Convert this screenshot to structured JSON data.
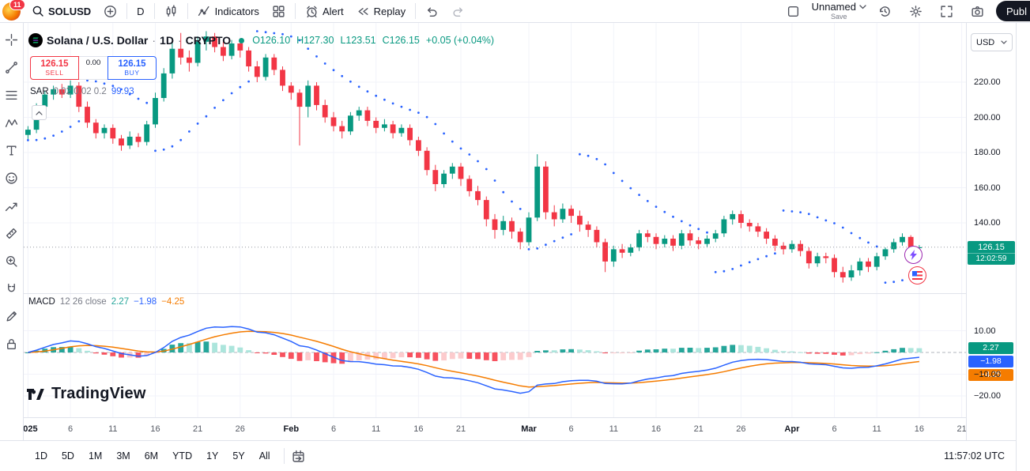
{
  "toolbar": {
    "notification_count": "11",
    "symbol": "SOLUSD",
    "interval": "D",
    "indicators_label": "Indicators",
    "alert_label": "Alert",
    "replay_label": "Replay",
    "layout_name": "Unnamed",
    "save_label": "Save",
    "publish_label": "Publ"
  },
  "header": {
    "title": "Solana / U.S. Dollar",
    "sep": "·",
    "interval": "1D",
    "market": "CRYPTO",
    "ohlc_items": [
      "O126.10",
      "H127.30",
      "L123.51",
      "C126.15",
      "+0.05 (+0.04%)"
    ],
    "sell_price": "126.15",
    "sell_label": "SELL",
    "spread": "0.00",
    "buy_price": "126.15",
    "buy_label": "BUY",
    "sar_title": "SAR",
    "sar_params": "0.02 0.02 0.2",
    "sar_value": "99.93"
  },
  "price_axis": {
    "currency": "USD",
    "labels": [
      "220.00",
      "200.00",
      "180.00",
      "160.00",
      "140.00"
    ],
    "last_price": "126.15",
    "countdown": "12:02:59"
  },
  "macd_panel": {
    "title": "MACD",
    "params": "12 26 close",
    "hist": "2.27",
    "macd": "−1.98",
    "signal": "−4.25",
    "axis_labels": [
      "10.00",
      "−10.00",
      "−20.00"
    ]
  },
  "bottom_bar": {
    "ranges": [
      "1D",
      "5D",
      "1M",
      "3M",
      "6M",
      "YTD",
      "1Y",
      "5Y",
      "All"
    ],
    "clock": "11:57:02 UTC"
  },
  "watermark": "TradingView",
  "left_toolbar": {
    "tools": [
      "crosshair",
      "trend-line",
      "fib-retracement",
      "pattern",
      "text",
      "emoji",
      "forecast",
      "ruler",
      "zoom-in",
      "magnet",
      "pencil",
      "lock"
    ]
  },
  "chart_data": {
    "type": "candlestick",
    "symbol": "SOLUSD",
    "timeframe": "1D",
    "last_price": 126.15,
    "price_gridlines": [
      220,
      200,
      180,
      160,
      140
    ],
    "macd_gridlines": [
      10,
      -10,
      -20
    ],
    "colors": {
      "up": "#089981",
      "down": "#F23645",
      "sar": "#2962FF",
      "macd_line": "#2962FF",
      "signal_line": "#F57C00",
      "hist_up_strong": "#26A69A",
      "hist_up_weak": "#ACE5DC",
      "hist_down_strong": "#F7525F",
      "hist_down_weak": "#FCCBCD"
    },
    "x_ticks": [
      {
        "i": 0,
        "label": "2025",
        "m": 1
      },
      {
        "i": 5,
        "label": "6"
      },
      {
        "i": 10,
        "label": "11"
      },
      {
        "i": 15,
        "label": "16"
      },
      {
        "i": 20,
        "label": "21"
      },
      {
        "i": 25,
        "label": "26"
      },
      {
        "i": 31,
        "label": "Feb",
        "m": 1
      },
      {
        "i": 36,
        "label": "6"
      },
      {
        "i": 41,
        "label": "11"
      },
      {
        "i": 46,
        "label": "16"
      },
      {
        "i": 51,
        "label": "21"
      },
      {
        "i": 59,
        "label": "Mar",
        "m": 1
      },
      {
        "i": 64,
        "label": "6"
      },
      {
        "i": 69,
        "label": "11"
      },
      {
        "i": 74,
        "label": "16"
      },
      {
        "i": 79,
        "label": "21"
      },
      {
        "i": 84,
        "label": "26"
      },
      {
        "i": 90,
        "label": "Apr",
        "m": 1
      },
      {
        "i": 95,
        "label": "6"
      },
      {
        "i": 100,
        "label": "11"
      },
      {
        "i": 105,
        "label": "16"
      },
      {
        "i": 110,
        "label": "21"
      }
    ],
    "indicators": {
      "sar": {
        "start": 0.02,
        "increment": 0.02,
        "max": 0.2,
        "last_value": 99.93
      },
      "macd": {
        "fast": 12,
        "slow": 26,
        "source": "close",
        "smoothing": 9,
        "last_hist": 2.27,
        "last_macd": -1.98,
        "last_signal": -4.25
      }
    },
    "candles": [
      [
        190,
        195,
        187,
        193
      ],
      [
        193,
        208,
        191,
        206
      ],
      [
        206,
        215,
        204,
        213
      ],
      [
        213,
        218,
        210,
        216
      ],
      [
        216,
        219,
        211,
        213
      ],
      [
        213,
        221,
        211,
        218
      ],
      [
        218,
        220,
        203,
        206
      ],
      [
        206,
        209,
        194,
        197
      ],
      [
        197,
        199,
        188,
        191
      ],
      [
        191,
        196,
        188,
        194
      ],
      [
        194,
        196,
        185,
        188
      ],
      [
        188,
        190,
        181,
        184
      ],
      [
        184,
        192,
        182,
        189
      ],
      [
        189,
        191,
        183,
        186
      ],
      [
        186,
        198,
        184,
        196
      ],
      [
        196,
        214,
        194,
        211
      ],
      [
        211,
        228,
        209,
        225
      ],
      [
        225,
        243,
        222,
        239
      ],
      [
        239,
        248,
        230,
        234
      ],
      [
        234,
        238,
        226,
        231
      ],
      [
        231,
        246,
        229,
        243
      ],
      [
        243,
        249,
        238,
        246
      ],
      [
        246,
        248,
        237,
        240
      ],
      [
        240,
        243,
        232,
        235
      ],
      [
        235,
        244,
        233,
        242
      ],
      [
        242,
        245,
        234,
        238
      ],
      [
        238,
        240,
        226,
        229
      ],
      [
        229,
        232,
        220,
        223
      ],
      [
        223,
        236,
        221,
        234
      ],
      [
        234,
        236,
        224,
        227
      ],
      [
        227,
        229,
        215,
        218
      ],
      [
        218,
        220,
        210,
        214
      ],
      [
        214,
        216,
        184,
        206
      ],
      [
        206,
        221,
        200,
        218
      ],
      [
        218,
        220,
        204,
        207
      ],
      [
        207,
        210,
        197,
        200
      ],
      [
        200,
        203,
        192,
        195
      ],
      [
        195,
        198,
        188,
        192
      ],
      [
        192,
        203,
        190,
        201
      ],
      [
        201,
        206,
        198,
        204
      ],
      [
        204,
        206,
        195,
        198
      ],
      [
        198,
        200,
        191,
        194
      ],
      [
        194,
        199,
        192,
        196
      ],
      [
        196,
        198,
        188,
        191
      ],
      [
        191,
        196,
        189,
        194
      ],
      [
        194,
        196,
        184,
        187
      ],
      [
        187,
        189,
        178,
        181
      ],
      [
        181,
        183,
        167,
        170
      ],
      [
        170,
        173,
        158,
        162
      ],
      [
        162,
        170,
        160,
        168
      ],
      [
        168,
        174,
        165,
        172
      ],
      [
        172,
        174,
        161,
        165
      ],
      [
        165,
        167,
        155,
        158
      ],
      [
        158,
        161,
        150,
        153
      ],
      [
        153,
        155,
        138,
        142
      ],
      [
        142,
        145,
        131,
        136
      ],
      [
        136,
        144,
        133,
        141
      ],
      [
        141,
        143,
        131,
        135
      ],
      [
        135,
        137,
        125,
        129
      ],
      [
        129,
        146,
        127,
        143
      ],
      [
        143,
        179,
        141,
        172
      ],
      [
        172,
        175,
        142,
        146
      ],
      [
        146,
        150,
        138,
        142
      ],
      [
        142,
        151,
        140,
        148
      ],
      [
        148,
        150,
        140,
        144
      ],
      [
        144,
        147,
        135,
        139
      ],
      [
        139,
        141,
        132,
        136
      ],
      [
        136,
        138,
        126,
        129
      ],
      [
        129,
        131,
        112,
        118
      ],
      [
        118,
        127,
        115,
        125
      ],
      [
        125,
        128,
        120,
        123
      ],
      [
        123,
        128,
        121,
        126
      ],
      [
        126,
        136,
        124,
        134
      ],
      [
        134,
        136,
        129,
        132
      ],
      [
        132,
        134,
        125,
        128
      ],
      [
        128,
        133,
        126,
        131
      ],
      [
        131,
        133,
        124,
        127
      ],
      [
        127,
        136,
        125,
        134
      ],
      [
        134,
        136,
        127,
        130
      ],
      [
        130,
        132,
        125,
        128
      ],
      [
        128,
        133,
        126,
        131
      ],
      [
        131,
        136,
        129,
        134
      ],
      [
        134,
        144,
        132,
        142
      ],
      [
        142,
        147,
        139,
        145
      ],
      [
        145,
        147,
        137,
        140
      ],
      [
        140,
        142,
        135,
        138
      ],
      [
        138,
        140,
        132,
        135
      ],
      [
        135,
        137,
        128,
        131
      ],
      [
        131,
        133,
        124,
        127
      ],
      [
        127,
        129,
        122,
        125
      ],
      [
        125,
        130,
        123,
        128
      ],
      [
        128,
        130,
        121,
        124
      ],
      [
        124,
        126,
        114,
        117
      ],
      [
        117,
        123,
        115,
        121
      ],
      [
        121,
        123,
        117,
        120
      ],
      [
        120,
        122,
        109,
        112
      ],
      [
        112,
        115,
        106,
        109
      ],
      [
        109,
        116,
        107,
        113
      ],
      [
        113,
        120,
        110,
        118
      ],
      [
        118,
        120,
        112,
        115
      ],
      [
        115,
        123,
        113,
        121
      ],
      [
        121,
        126,
        119,
        125
      ],
      [
        125,
        131,
        123,
        129
      ],
      [
        129,
        134,
        127,
        132
      ],
      [
        132,
        133,
        125,
        126.1
      ],
      [
        126.1,
        127.3,
        123.51,
        126.15
      ]
    ]
  }
}
